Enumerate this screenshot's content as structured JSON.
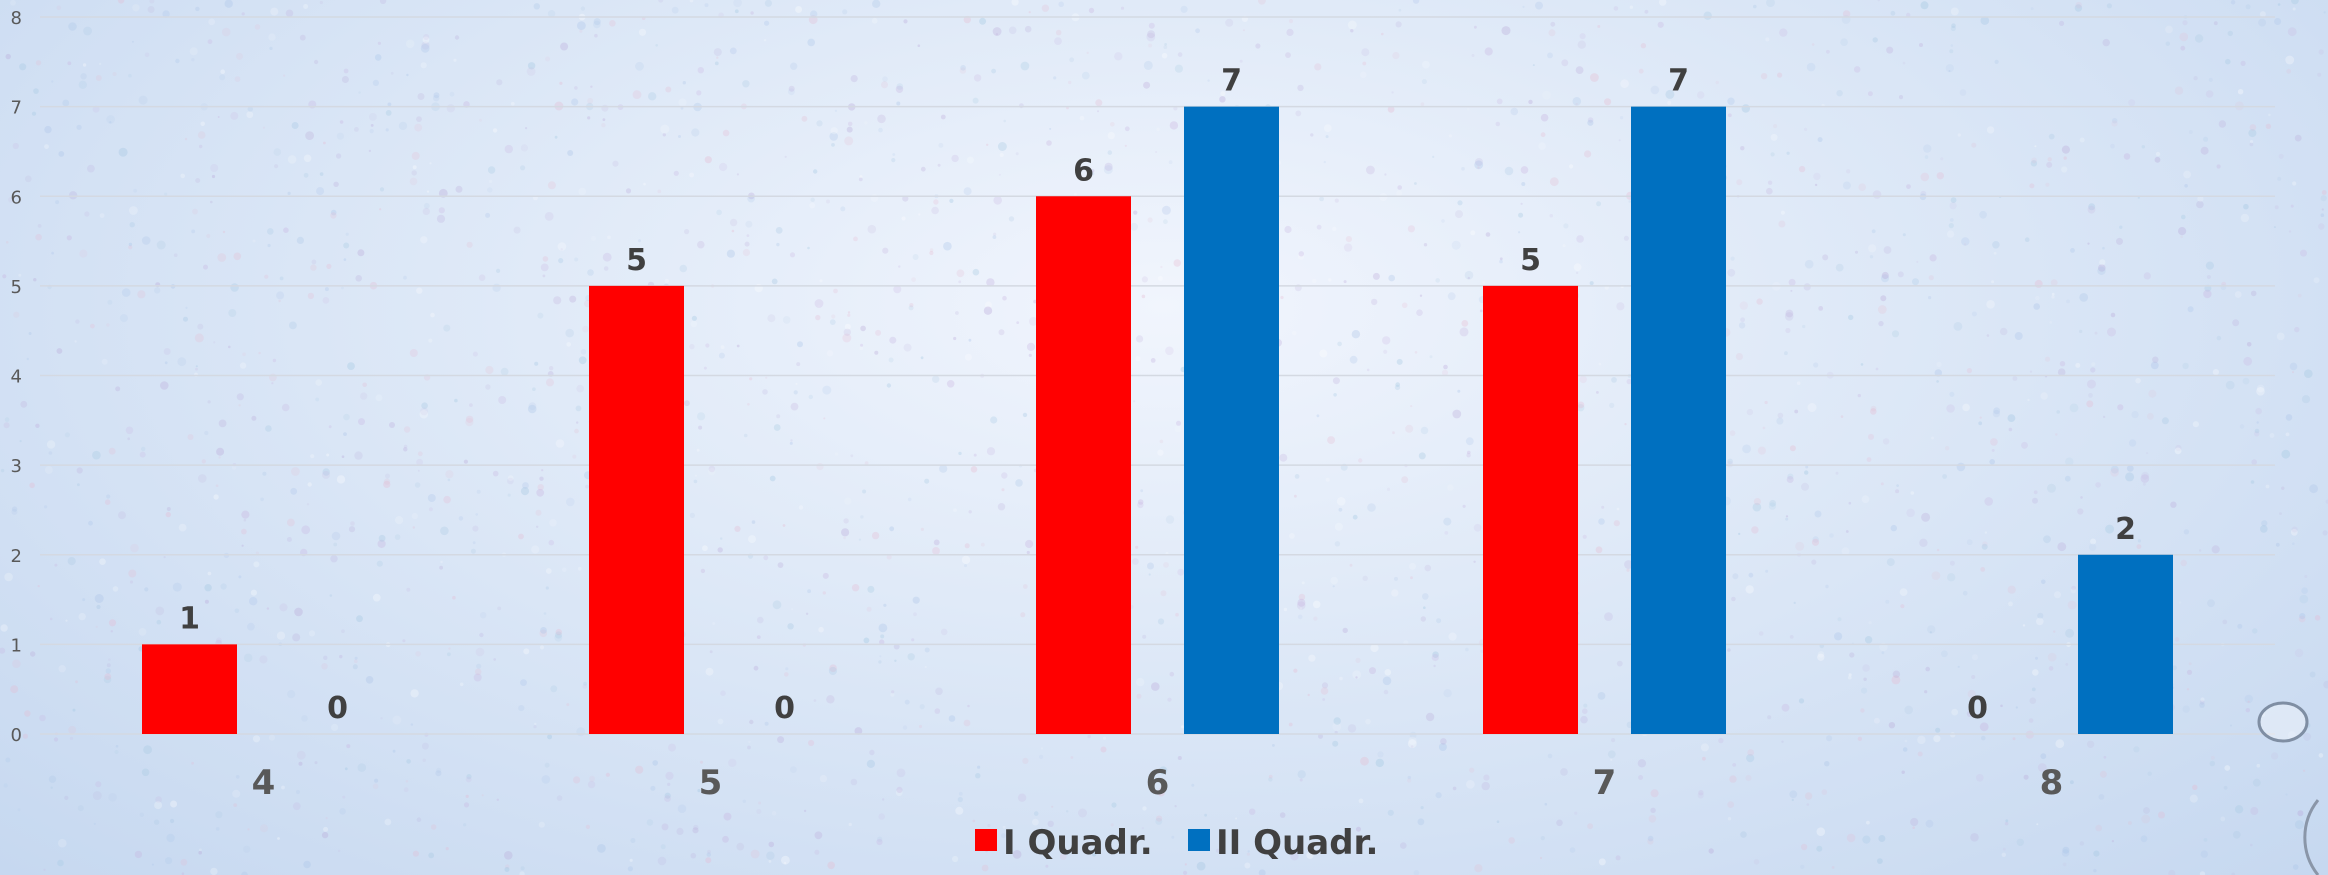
{
  "chart_data": {
    "type": "bar",
    "categories": [
      "4",
      "5",
      "6",
      "7",
      "8"
    ],
    "series": [
      {
        "name": "I Quadr.",
        "values": [
          1,
          5,
          6,
          5,
          0
        ],
        "color": "#ff0000"
      },
      {
        "name": "II Quadr.",
        "values": [
          0,
          0,
          7,
          7,
          2
        ],
        "color": "#0070c0"
      }
    ],
    "title": "",
    "xlabel": "",
    "ylabel": "",
    "ylim": [
      0,
      8
    ],
    "yticks": [
      "0",
      "1",
      "2",
      "3",
      "4",
      "5",
      "6",
      "7",
      "8"
    ],
    "grid": true,
    "data_labels": true,
    "legend_position": "bottom"
  }
}
